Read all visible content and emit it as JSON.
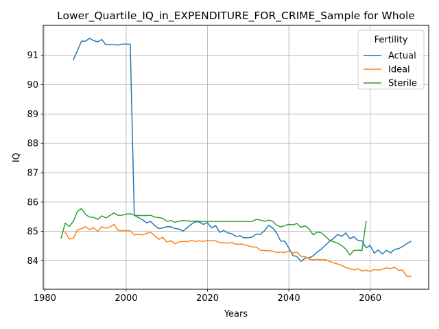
{
  "chart_data": {
    "type": "line",
    "title": "Lower_Quartile_IQ_in_EXPENDITURE_FOR_CRIME_Sample for Whole",
    "xlabel": "Years",
    "ylabel": "IQ",
    "xlim": [
      1979.6,
      2074.4
    ],
    "ylim": [
      83.03,
      92.02
    ],
    "xticks": [
      1980,
      2000,
      2020,
      2040,
      2060
    ],
    "yticks": [
      84,
      85,
      86,
      87,
      88,
      89,
      90,
      91
    ],
    "grid": true,
    "legend": {
      "title": "Fertility",
      "placement": "top-right"
    },
    "series": [
      {
        "name": "Actual",
        "color": "#1f77b4",
        "x": [
          1987,
          1988,
          1989,
          1990,
          1991,
          1992,
          1993,
          1994,
          1995,
          1996,
          1997,
          1998,
          1999,
          2000,
          2001,
          2002,
          2003,
          2004,
          2005,
          2006,
          2007,
          2008,
          2009,
          2010,
          2011,
          2012,
          2013,
          2014,
          2015,
          2016,
          2017,
          2018,
          2019,
          2020,
          2021,
          2022,
          2023,
          2024,
          2025,
          2026,
          2027,
          2028,
          2029,
          2030,
          2031,
          2032,
          2033,
          2034,
          2035,
          2036,
          2037,
          2038,
          2039,
          2040,
          2041,
          2042,
          2043,
          2044,
          2045,
          2046,
          2047,
          2048,
          2049,
          2050,
          2051,
          2052,
          2053,
          2054,
          2055,
          2056,
          2057,
          2058,
          2059,
          2060,
          2061,
          2062,
          2063,
          2064,
          2065,
          2066,
          2067,
          2068,
          2069,
          2070
        ],
        "y": [
          90.85,
          91.15,
          91.48,
          91.48,
          91.58,
          91.5,
          91.46,
          91.54,
          91.36,
          91.36,
          91.36,
          91.35,
          91.38,
          91.38,
          91.38,
          85.55,
          85.47,
          85.4,
          85.29,
          85.34,
          85.2,
          85.1,
          85.12,
          85.16,
          85.16,
          85.1,
          85.08,
          85.01,
          85.13,
          85.24,
          85.33,
          85.32,
          85.24,
          85.3,
          85.12,
          85.2,
          84.97,
          85.03,
          84.95,
          84.92,
          84.83,
          84.85,
          84.78,
          84.78,
          84.81,
          84.91,
          84.9,
          85.02,
          85.21,
          85.12,
          84.95,
          84.67,
          84.67,
          84.43,
          84.18,
          84.14,
          83.98,
          84.09,
          84.1,
          84.17,
          84.3,
          84.4,
          84.53,
          84.66,
          84.76,
          84.9,
          84.83,
          84.95,
          84.75,
          84.82,
          84.69,
          84.68,
          84.44,
          84.52,
          84.26,
          84.37,
          84.23,
          84.36,
          84.27,
          84.39,
          84.41,
          84.49,
          84.58,
          84.66
        ]
      },
      {
        "name": "Ideal",
        "color": "#ff7f0e",
        "x": [
          1985,
          1986,
          1987,
          1988,
          1989,
          1990,
          1991,
          1992,
          1993,
          1994,
          1995,
          1996,
          1997,
          1998,
          1999,
          2000,
          2001,
          2002,
          2003,
          2004,
          2005,
          2006,
          2007,
          2008,
          2009,
          2010,
          2011,
          2012,
          2013,
          2014,
          2015,
          2016,
          2017,
          2018,
          2019,
          2020,
          2021,
          2022,
          2023,
          2024,
          2025,
          2026,
          2027,
          2028,
          2029,
          2030,
          2031,
          2032,
          2033,
          2034,
          2035,
          2036,
          2037,
          2038,
          2039,
          2040,
          2041,
          2042,
          2043,
          2044,
          2045,
          2046,
          2047,
          2048,
          2049,
          2050,
          2051,
          2052,
          2053,
          2054,
          2055,
          2056,
          2057,
          2058,
          2059,
          2060,
          2061,
          2062,
          2063,
          2064,
          2065,
          2066,
          2067,
          2068,
          2069,
          2070
        ],
        "y": [
          84.98,
          84.74,
          84.76,
          85.05,
          85.09,
          85.16,
          85.06,
          85.13,
          85.0,
          85.16,
          85.11,
          85.15,
          85.24,
          85.04,
          85.02,
          85.03,
          85.02,
          84.88,
          84.9,
          84.88,
          84.93,
          84.97,
          84.86,
          84.73,
          84.8,
          84.64,
          84.68,
          84.58,
          84.64,
          84.66,
          84.65,
          84.69,
          84.66,
          84.68,
          84.66,
          84.69,
          84.68,
          84.68,
          84.62,
          84.61,
          84.6,
          84.62,
          84.56,
          84.57,
          84.55,
          84.51,
          84.47,
          84.47,
          84.36,
          84.35,
          84.34,
          84.33,
          84.28,
          84.3,
          84.28,
          84.33,
          84.27,
          84.29,
          84.15,
          84.14,
          84.06,
          84.03,
          84.05,
          84.03,
          84.04,
          83.98,
          83.93,
          83.89,
          83.84,
          83.77,
          83.73,
          83.69,
          83.73,
          83.65,
          83.68,
          83.64,
          83.7,
          83.68,
          83.71,
          83.76,
          83.73,
          83.78,
          83.67,
          83.68,
          83.47,
          83.47
        ]
      },
      {
        "name": "Sterile",
        "color": "#2ca02c",
        "x": [
          1984,
          1985,
          1986,
          1987,
          1988,
          1989,
          1990,
          1991,
          1992,
          1993,
          1994,
          1995,
          1996,
          1997,
          1998,
          1999,
          2000,
          2001,
          2002,
          2003,
          2004,
          2005,
          2006,
          2007,
          2008,
          2009,
          2010,
          2011,
          2012,
          2013,
          2014,
          2015,
          2016,
          2017,
          2018,
          2019,
          2020,
          2021,
          2022,
          2023,
          2024,
          2025,
          2026,
          2027,
          2028,
          2029,
          2030,
          2031,
          2032,
          2033,
          2034,
          2035,
          2036,
          2037,
          2038,
          2039,
          2040,
          2041,
          2042,
          2043,
          2044,
          2045,
          2046,
          2047,
          2048,
          2049,
          2050,
          2051,
          2052,
          2053,
          2054,
          2055,
          2056,
          2057,
          2058,
          2059
        ],
        "y": [
          84.77,
          85.28,
          85.17,
          85.34,
          85.68,
          85.78,
          85.58,
          85.49,
          85.48,
          85.41,
          85.53,
          85.46,
          85.54,
          85.63,
          85.55,
          85.55,
          85.59,
          85.6,
          85.56,
          85.54,
          85.54,
          85.54,
          85.55,
          85.49,
          85.47,
          85.45,
          85.34,
          85.37,
          85.31,
          85.35,
          85.37,
          85.36,
          85.35,
          85.35,
          85.35,
          85.34,
          85.34,
          85.34,
          85.34,
          85.34,
          85.34,
          85.34,
          85.34,
          85.34,
          85.34,
          85.34,
          85.34,
          85.34,
          85.41,
          85.39,
          85.34,
          85.38,
          85.35,
          85.21,
          85.15,
          85.2,
          85.24,
          85.22,
          85.27,
          85.14,
          85.19,
          85.08,
          84.88,
          84.98,
          84.95,
          84.83,
          84.7,
          84.65,
          84.6,
          84.52,
          84.4,
          84.2,
          84.35,
          84.36,
          84.35,
          85.34
        ]
      }
    ]
  }
}
